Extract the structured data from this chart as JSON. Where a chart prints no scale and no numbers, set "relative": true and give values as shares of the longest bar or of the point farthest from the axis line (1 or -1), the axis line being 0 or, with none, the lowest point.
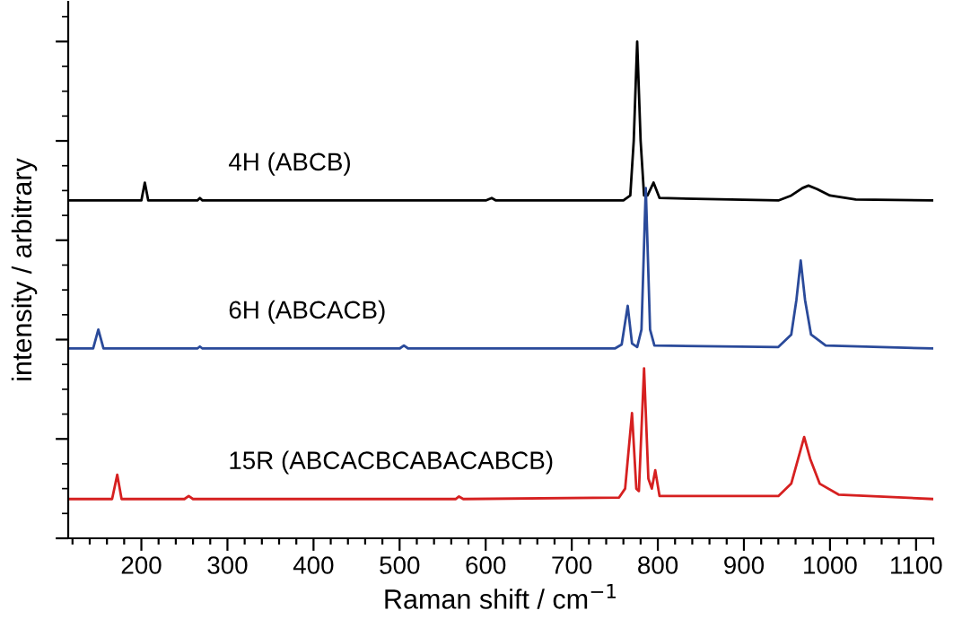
{
  "chart_data": {
    "type": "line",
    "relative": true,
    "xlabel": "Raman shift / cm$^{−1}$",
    "ylabel": "intensity / arbitrary",
    "xlim": [
      115,
      1120
    ],
    "xticks": [
      {
        "value": 120,
        "label": null
      },
      {
        "value": 140,
        "label": null
      },
      {
        "value": 160,
        "label": null
      },
      {
        "value": 180,
        "label": null
      },
      200,
      {
        "value": 220,
        "label": null
      },
      {
        "value": 240,
        "label": null
      },
      {
        "value": 260,
        "label": null
      },
      {
        "value": 280,
        "label": null
      },
      300,
      {
        "value": 320,
        "label": null
      },
      {
        "value": 340,
        "label": null
      },
      {
        "value": 360,
        "label": null
      },
      {
        "value": 380,
        "label": null
      },
      400,
      {
        "value": 420,
        "label": null
      },
      {
        "value": 440,
        "label": null
      },
      {
        "value": 460,
        "label": null
      },
      {
        "value": 480,
        "label": null
      },
      500,
      {
        "value": 520,
        "label": null
      },
      {
        "value": 540,
        "label": null
      },
      {
        "value": 560,
        "label": null
      },
      {
        "value": 580,
        "label": null
      },
      600,
      {
        "value": 620,
        "label": null
      },
      {
        "value": 640,
        "label": null
      },
      {
        "value": 660,
        "label": null
      },
      {
        "value": 680,
        "label": null
      },
      700,
      {
        "value": 720,
        "label": null
      },
      {
        "value": 740,
        "label": null
      },
      {
        "value": 760,
        "label": null
      },
      {
        "value": 780,
        "label": null
      },
      800,
      {
        "value": 820,
        "label": null
      },
      {
        "value": 840,
        "label": null
      },
      {
        "value": 860,
        "label": null
      },
      {
        "value": 880,
        "label": null
      },
      900,
      {
        "value": 920,
        "label": null
      },
      {
        "value": 940,
        "label": null
      },
      {
        "value": 960,
        "label": null
      },
      {
        "value": 980,
        "label": null
      },
      1000,
      {
        "value": 1020,
        "label": null
      },
      {
        "value": 1040,
        "label": null
      },
      {
        "value": 1060,
        "label": null
      },
      {
        "value": 1080,
        "label": null
      },
      1100,
      {
        "value": 1120,
        "label": null
      }
    ],
    "grid": false,
    "legend": false,
    "tick_labels": "x",
    "marker": "none",
    "line_style": "solid",
    "series": [
      {
        "name": "4H (ABCB)",
        "color": "#000000",
        "x": [
          115,
          195,
          200,
          204,
          208,
          265,
          268,
          271,
          600,
          607,
          612,
          760,
          768,
          772,
          776,
          780,
          784,
          788,
          795,
          802,
          940,
          955,
          968,
          975,
          985,
          1000,
          1030,
          1120
        ],
        "values": [
          0.68,
          0.68,
          0.68,
          0.716,
          0.68,
          0.68,
          0.685,
          0.68,
          0.68,
          0.685,
          0.68,
          0.68,
          0.69,
          0.8,
          1.0,
          0.8,
          0.69,
          0.69,
          0.716,
          0.685,
          0.68,
          0.69,
          0.705,
          0.71,
          0.703,
          0.69,
          0.682,
          0.68
        ]
      },
      {
        "name": "6H (ABCACB)",
        "color": "#2a4a9a",
        "x": [
          115,
          144,
          150,
          156,
          265,
          268,
          271,
          500,
          505,
          510,
          750,
          758,
          765,
          770,
          776,
          781,
          786,
          791,
          796,
          940,
          955,
          961,
          966,
          971,
          978,
          995,
          1120
        ],
        "values": [
          0.382,
          0.382,
          0.42,
          0.382,
          0.382,
          0.386,
          0.382,
          0.382,
          0.388,
          0.382,
          0.382,
          0.39,
          0.468,
          0.392,
          0.385,
          0.42,
          0.705,
          0.42,
          0.388,
          0.385,
          0.41,
          0.48,
          0.559,
          0.48,
          0.41,
          0.388,
          0.382
        ]
      },
      {
        "name": "15R (ABCACBCABACABCB)",
        "color": "#d62020",
        "x": [
          115,
          166,
          172,
          177,
          250,
          255,
          260,
          565,
          569,
          574,
          755,
          762,
          770,
          775,
          778,
          784,
          789,
          793,
          797,
          802,
          940,
          955,
          963,
          970,
          977,
          988,
          1010,
          1120
        ],
        "values": [
          0.079,
          0.079,
          0.128,
          0.079,
          0.079,
          0.085,
          0.079,
          0.079,
          0.084,
          0.079,
          0.082,
          0.1,
          0.252,
          0.1,
          0.095,
          0.342,
          0.12,
          0.1,
          0.137,
          0.085,
          0.085,
          0.11,
          0.16,
          0.204,
          0.16,
          0.11,
          0.088,
          0.079
        ]
      }
    ]
  }
}
